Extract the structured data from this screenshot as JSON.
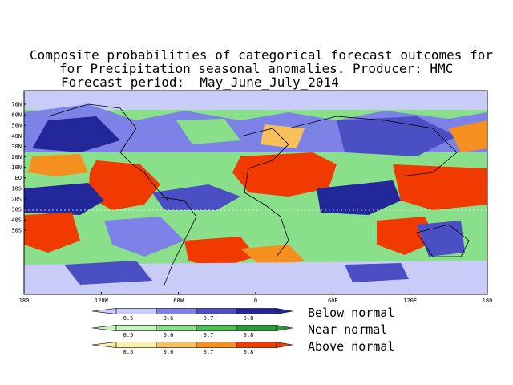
{
  "title": {
    "line1": "Composite probabilities of categorical forecast outcomes for",
    "line2": "for Precipitation seasonal anomalies. Producer: HMC",
    "line3": "Forecast period:  May_June_July_2014"
  },
  "map": {
    "lat_labels": [
      "70N",
      "60N",
      "50N",
      "40N",
      "30N",
      "20N",
      "10N",
      "EQ",
      "10S",
      "20S",
      "30S",
      "40S",
      "50S"
    ],
    "lon_labels": [
      "180",
      "120W",
      "60W",
      "0",
      "60E",
      "120E",
      "180"
    ]
  },
  "legend": {
    "below": {
      "label": "Below normal",
      "colors": [
        "#c8ccf6",
        "#7d83e6",
        "#4a4fc4",
        "#22289a"
      ],
      "ticks": [
        "0.5",
        "0.6",
        "0.7",
        "0.8"
      ]
    },
    "near": {
      "label": "Near normal",
      "colors": [
        "#c4f4c0",
        "#8ae08a",
        "#4fbf52",
        "#2a9a34"
      ],
      "ticks": [
        "0.5",
        "0.6",
        "0.7",
        "0.8"
      ]
    },
    "above": {
      "label": "Above normal",
      "colors": [
        "#fbf0a8",
        "#f8c05a",
        "#f5901e",
        "#f03a00"
      ],
      "ticks": [
        "0.5",
        "0.6",
        "0.7",
        "0.8"
      ]
    }
  }
}
